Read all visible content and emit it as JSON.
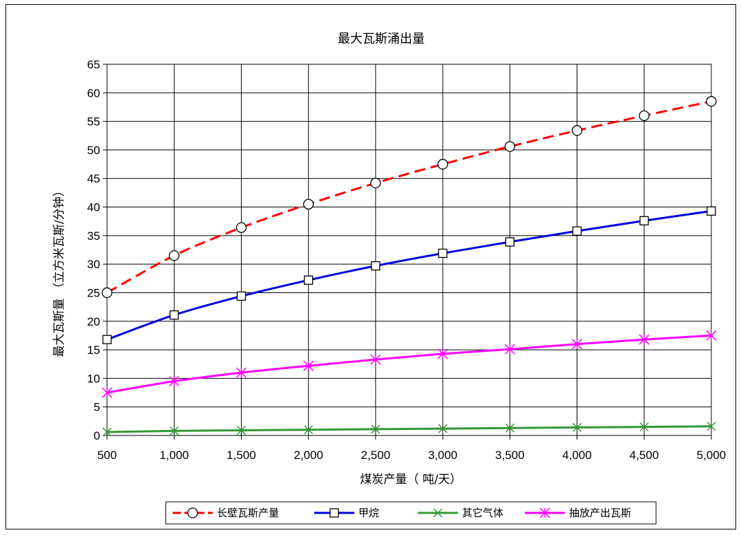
{
  "chart_data": {
    "type": "line",
    "title": "最大瓦斯涌出量",
    "xlabel": "煤炭产量（ 吨/天）",
    "ylabel": "最大瓦斯量 （立方米瓦斯/分钟）",
    "x": [
      500,
      1000,
      1500,
      2000,
      2500,
      3000,
      3500,
      4000,
      4500,
      5000
    ],
    "x_tick_labels": [
      "500",
      "1,000",
      "1,500",
      "2,000",
      "2,500",
      "3,000",
      "3,500",
      "4,000",
      "4,500",
      "5,000"
    ],
    "ylim": [
      0,
      65
    ],
    "y_ticks": [
      0,
      5,
      10,
      15,
      20,
      25,
      30,
      35,
      40,
      45,
      50,
      55,
      60,
      65
    ],
    "grid": true,
    "legend_position": "bottom",
    "series": [
      {
        "name": "长壁瓦斯产量",
        "color": "#ff0000",
        "dash": true,
        "marker": "circle",
        "values": [
          25.0,
          31.5,
          36.4,
          40.5,
          44.2,
          47.5,
          50.6,
          53.4,
          56.0,
          58.5
        ]
      },
      {
        "name": "甲烷",
        "color": "#0000dd",
        "dash": false,
        "marker": "square",
        "values": [
          16.8,
          21.1,
          24.4,
          27.2,
          29.7,
          31.9,
          33.9,
          35.8,
          37.6,
          39.3
        ]
      },
      {
        "name": "其它气体",
        "color": "#339933",
        "dash": false,
        "marker": "x",
        "values": [
          0.6,
          0.8,
          0.9,
          1.0,
          1.1,
          1.2,
          1.3,
          1.4,
          1.5,
          1.6
        ]
      },
      {
        "name": "抽放产出瓦斯",
        "color": "#ff00ff",
        "dash": false,
        "marker": "star",
        "values": [
          7.5,
          9.5,
          11.0,
          12.2,
          13.3,
          14.3,
          15.1,
          16.0,
          16.8,
          17.5
        ]
      }
    ]
  }
}
